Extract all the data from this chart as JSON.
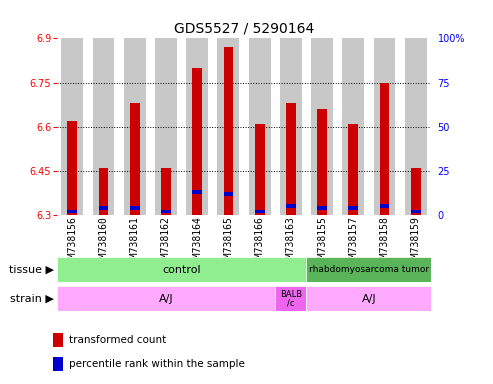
{
  "title": "GDS5527 / 5290164",
  "samples": [
    "GSM738156",
    "GSM738160",
    "GSM738161",
    "GSM738162",
    "GSM738164",
    "GSM738165",
    "GSM738166",
    "GSM738163",
    "GSM738155",
    "GSM738157",
    "GSM738158",
    "GSM738159"
  ],
  "red_values": [
    6.62,
    6.46,
    6.68,
    6.46,
    6.8,
    6.87,
    6.61,
    6.68,
    6.66,
    6.61,
    6.75,
    6.46
  ],
  "blue_values": [
    2.0,
    4.0,
    4.0,
    2.0,
    13.0,
    12.0,
    2.0,
    5.0,
    4.0,
    4.0,
    5.0,
    2.0
  ],
  "ymin": 6.3,
  "ymax": 6.9,
  "yticks": [
    6.3,
    6.45,
    6.6,
    6.75,
    6.9
  ],
  "right_yticks": [
    0,
    25,
    50,
    75,
    100
  ],
  "bar_color": "#cc0000",
  "blue_color": "#0000cc",
  "bar_bg_color": "#c8c8c8",
  "tissue_control_color": "#90ee90",
  "tissue_tumor_color": "#5ab55a",
  "strain_aj_color": "#ffaaff",
  "strain_balb_color": "#ee66ee",
  "tissue_control_label": "control",
  "tissue_tumor_label": "rhabdomyosarcoma tumor",
  "strain_aj_label": "A/J",
  "strain_balb_label": "BALB\n/c",
  "tissue_row_label": "tissue",
  "strain_row_label": "strain",
  "legend_red": "transformed count",
  "legend_blue": "percentile rank within the sample",
  "title_fontsize": 10,
  "tick_fontsize": 7,
  "anno_fontsize": 8,
  "bar_width": 0.7
}
